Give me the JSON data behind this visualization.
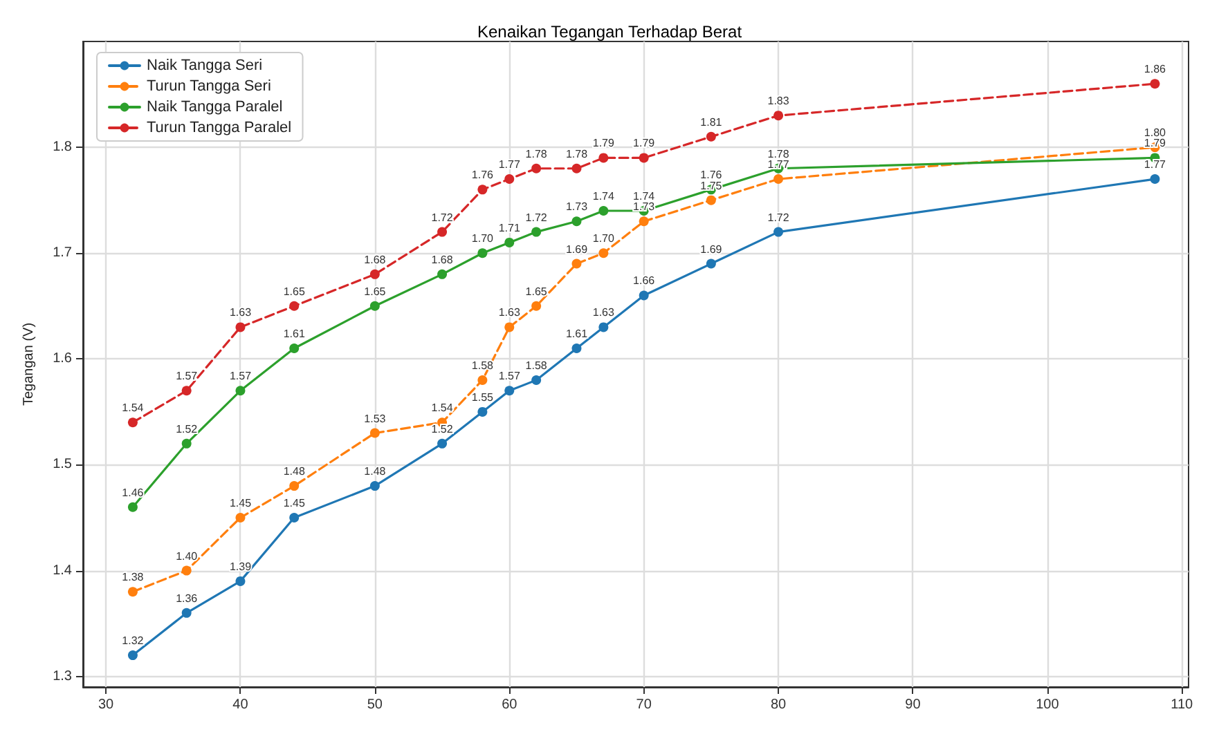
{
  "chart_data": {
    "type": "line",
    "title": "Kenaikan Tegangan Terhadap Berat",
    "ylabel": "Tegangan (V)",
    "x": [
      32,
      36,
      40,
      44,
      50,
      55,
      58,
      60,
      62,
      65,
      67,
      70,
      75,
      80,
      108
    ],
    "series": [
      {
        "name": "Naik Tangga Seri",
        "color": "#1f77b4",
        "line_style": "solid",
        "values": [
          1.32,
          1.36,
          1.39,
          1.45,
          1.48,
          1.52,
          1.55,
          1.57,
          1.58,
          1.61,
          1.63,
          1.66,
          1.69,
          1.72,
          1.77
        ],
        "value_labels": [
          "1.32",
          "1.36",
          "1.39",
          "1.45",
          "1.48",
          "1.52",
          "1.55",
          "1.57",
          "1.58",
          "1.61",
          "1.63",
          "1.66",
          "1.69",
          "1.72",
          "1.77"
        ]
      },
      {
        "name": "Turun Tangga Seri",
        "color": "#ff7f0e",
        "line_style": "dashed",
        "values": [
          1.38,
          1.4,
          1.45,
          1.48,
          1.53,
          1.54,
          1.58,
          1.63,
          1.65,
          1.69,
          1.7,
          1.73,
          1.75,
          1.77,
          1.8
        ],
        "value_labels": [
          "1.38",
          "1.40",
          "1.45",
          "1.48",
          "1.53",
          "1.54",
          "1.58",
          "1.63",
          "1.65",
          "1.69",
          "1.70",
          "1.73",
          "1.75",
          "1.77",
          "1.80"
        ]
      },
      {
        "name": "Naik Tangga Paralel",
        "color": "#2ca02c",
        "line_style": "solid",
        "values": [
          1.46,
          1.52,
          1.57,
          1.61,
          1.65,
          1.68,
          1.7,
          1.71,
          1.72,
          1.73,
          1.74,
          1.74,
          1.76,
          1.78,
          1.79
        ],
        "value_labels": [
          "1.46",
          "1.52",
          "1.57",
          "1.61",
          "1.65",
          "1.68",
          "1.70",
          "1.71",
          "1.72",
          "1.73",
          "1.74",
          "1.74",
          "1.76",
          "1.78",
          "1.79"
        ]
      },
      {
        "name": "Turun Tangga Paralel",
        "color": "#d62728",
        "line_style": "dashed",
        "values": [
          1.54,
          1.57,
          1.63,
          1.65,
          1.68,
          1.72,
          1.76,
          1.77,
          1.78,
          1.78,
          1.79,
          1.79,
          1.81,
          1.83,
          1.86
        ],
        "value_labels": [
          "1.54",
          "1.57",
          "1.63",
          "1.65",
          "1.68",
          "1.72",
          "1.76",
          "1.77",
          "1.78",
          "1.78",
          "1.79",
          "1.79",
          "1.81",
          "1.83",
          "1.86"
        ]
      }
    ],
    "xlim": [
      28.3,
      110.5
    ],
    "xticks": [
      30,
      40,
      50,
      60,
      70,
      80,
      90,
      100,
      110
    ],
    "ylim": [
      1.29,
      1.9
    ],
    "yticks": [
      1.3,
      1.4,
      1.5,
      1.6,
      1.7,
      1.8
    ],
    "grid": true,
    "legend": "top left",
    "marker": "circle"
  }
}
